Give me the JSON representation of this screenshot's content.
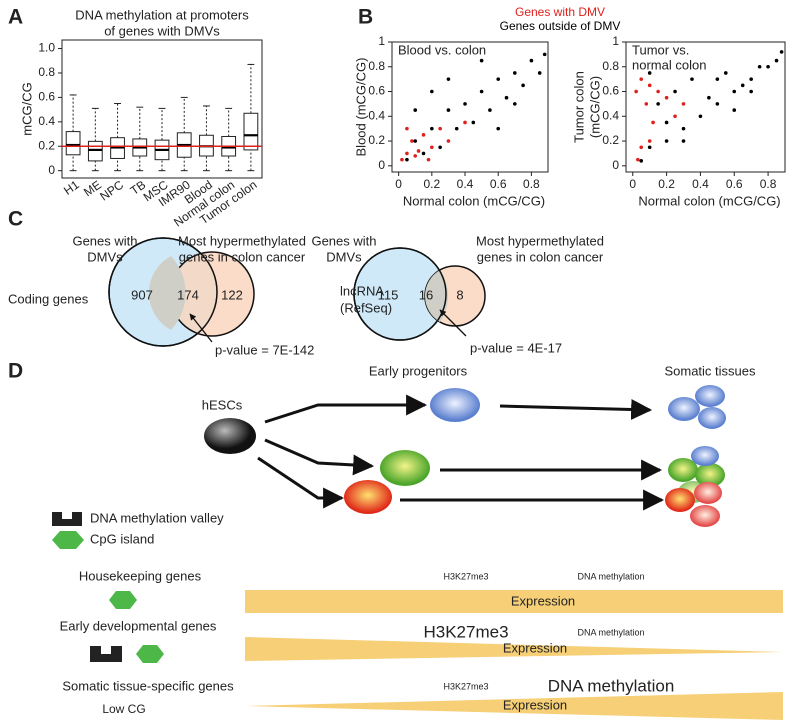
{
  "panel_labels": [
    "A",
    "B",
    "C",
    "D"
  ],
  "chart_data": [
    {
      "type": "box",
      "title": [
        "DNA methylation at promoters",
        "of genes with DMVs"
      ],
      "y_label": "mCG/CG",
      "categories": [
        "H1",
        "ME",
        "NPC",
        "TB",
        "MSC",
        "IMR90",
        "Blood",
        "Normal colon",
        "Tumor colon"
      ],
      "boxes": [
        {
          "min": 0,
          "q1": 0.13,
          "median": 0.21,
          "q3": 0.32,
          "max": 0.62
        },
        {
          "min": 0,
          "q1": 0.08,
          "median": 0.17,
          "q3": 0.24,
          "max": 0.51
        },
        {
          "min": 0,
          "q1": 0.1,
          "median": 0.19,
          "q3": 0.27,
          "max": 0.55
        },
        {
          "min": 0,
          "q1": 0.12,
          "median": 0.19,
          "q3": 0.26,
          "max": 0.52
        },
        {
          "min": 0,
          "q1": 0.09,
          "median": 0.17,
          "q3": 0.25,
          "max": 0.51
        },
        {
          "min": 0,
          "q1": 0.11,
          "median": 0.21,
          "q3": 0.31,
          "max": 0.6
        },
        {
          "min": 0,
          "q1": 0.12,
          "median": 0.2,
          "q3": 0.29,
          "max": 0.53
        },
        {
          "min": 0,
          "q1": 0.12,
          "median": 0.19,
          "q3": 0.28,
          "max": 0.51
        },
        {
          "min": 0,
          "q1": 0.17,
          "median": 0.29,
          "q3": 0.47,
          "max": 0.87
        }
      ],
      "reference_line": {
        "value": 0.2,
        "color": "#e0201b"
      },
      "ylim": [
        -0.06,
        1.07
      ],
      "yticks": [
        0,
        0.2,
        0.4,
        0.6,
        0.8,
        {
          "value": 1,
          "label": "1.0"
        }
      ]
    },
    {
      "type": "scatter",
      "annotation": [
        "Blood vs. colon"
      ],
      "x_label": "Normal colon (mCG/CG)",
      "y_label": [
        "Blood (mCG/CG)"
      ],
      "xlim": [
        -0.04,
        0.9
      ],
      "ylim": [
        -0.05,
        1.0
      ],
      "xticks": [
        0,
        0.2,
        0.4,
        0.6,
        0.8
      ],
      "yticks": [
        0,
        0.2,
        0.4,
        0.6,
        0.8,
        1
      ],
      "series": [
        {
          "name": "Genes outside of DMV",
          "color": "#000000",
          "x": [
            0.05,
            0.1,
            0.15,
            0.2,
            0.25,
            0.3,
            0.35,
            0.4,
            0.45,
            0.5,
            0.55,
            0.6,
            0.65,
            0.7,
            0.75,
            0.8,
            0.85,
            0.88,
            0.1,
            0.2,
            0.3,
            0.5,
            0.6,
            0.7
          ],
          "y": [
            0.05,
            0.2,
            0.1,
            0.3,
            0.15,
            0.45,
            0.3,
            0.5,
            0.35,
            0.6,
            0.45,
            0.7,
            0.55,
            0.75,
            0.65,
            0.85,
            0.75,
            0.9,
            0.45,
            0.6,
            0.7,
            0.85,
            0.3,
            0.5
          ]
        },
        {
          "name": "Genes with DMV",
          "color": "#e0201b",
          "x": [
            0.02,
            0.05,
            0.08,
            0.1,
            0.15,
            0.2,
            0.25,
            0.3,
            0.4,
            0.05,
            0.12,
            0.18
          ],
          "y": [
            0.05,
            0.1,
            0.2,
            0.08,
            0.25,
            0.15,
            0.3,
            0.2,
            0.35,
            0.3,
            0.12,
            0.05
          ]
        }
      ]
    },
    {
      "type": "scatter",
      "annotation": [
        "Tumor vs.",
        "normal colon"
      ],
      "x_label": "Normal colon (mCG/CG)",
      "y_label": [
        "Tumor colon",
        "(mCG/CG)"
      ],
      "xlim": [
        -0.04,
        0.9
      ],
      "ylim": [
        -0.05,
        1.0
      ],
      "xticks": [
        0,
        0.2,
        0.4,
        0.6,
        0.8
      ],
      "yticks": [
        0,
        0.2,
        0.4,
        0.6,
        0.8,
        1
      ],
      "series": [
        {
          "color": "#000000",
          "x": [
            0.05,
            0.1,
            0.15,
            0.2,
            0.25,
            0.3,
            0.35,
            0.4,
            0.45,
            0.5,
            0.55,
            0.6,
            0.65,
            0.7,
            0.75,
            0.8,
            0.85,
            0.88,
            0.1,
            0.2,
            0.3,
            0.5,
            0.6,
            0.7
          ],
          "y": [
            0.04,
            0.15,
            0.5,
            0.2,
            0.6,
            0.3,
            0.7,
            0.4,
            0.55,
            0.5,
            0.75,
            0.6,
            0.65,
            0.7,
            0.8,
            0.8,
            0.85,
            0.92,
            0.75,
            0.35,
            0.2,
            0.7,
            0.45,
            0.6
          ]
        },
        {
          "color": "#e0201b",
          "x": [
            0.05,
            0.1,
            0.15,
            0.08,
            0.2,
            0.03,
            0.05,
            0.1,
            0.25,
            0.12,
            0.3,
            0.02
          ],
          "y": [
            0.7,
            0.65,
            0.6,
            0.5,
            0.55,
            0.05,
            0.15,
            0.2,
            0.4,
            0.35,
            0.5,
            0.6
          ]
        }
      ]
    }
  ],
  "panel_c": {
    "left": {
      "set_a": [
        "Genes with",
        "DMVs"
      ],
      "set_b": [
        "Most hypermethylated",
        "genes in colon cancer"
      ],
      "row_label": [
        "Coding genes"
      ],
      "only_a": 907,
      "both": 174,
      "only_b": 122,
      "p_value": "p-value = 7E-142"
    },
    "right": {
      "set_a": [
        "Genes with",
        "DMVs"
      ],
      "set_b": [
        "Most hypermethylated",
        "genes in colon cancer"
      ],
      "row_label": [
        "lncRNA",
        "(RefSeq)"
      ],
      "only_a": 115,
      "both": 16,
      "only_b": 8,
      "p_value": "p-value = 4E-17"
    }
  },
  "panel_d": {
    "stages": [
      "Early progenitors",
      "Somatic tissues"
    ],
    "origin": "hESCs",
    "legend": [
      "DNA methylation valley",
      "CpG island"
    ],
    "rows": [
      {
        "label": "Housekeeping genes",
        "marks": [
          "H3K27me3",
          "DNA methylation"
        ],
        "bar": "Expression"
      },
      {
        "label": "Early developmental genes",
        "marks": [
          "H3K27me3",
          "DNA methylation"
        ],
        "bar": "Expression"
      },
      {
        "label": "Somatic tissue-specific genes",
        "note": "Low CG",
        "marks": [
          "H3K27me3",
          "DNA methylation"
        ],
        "bar": "Expression"
      }
    ]
  }
}
